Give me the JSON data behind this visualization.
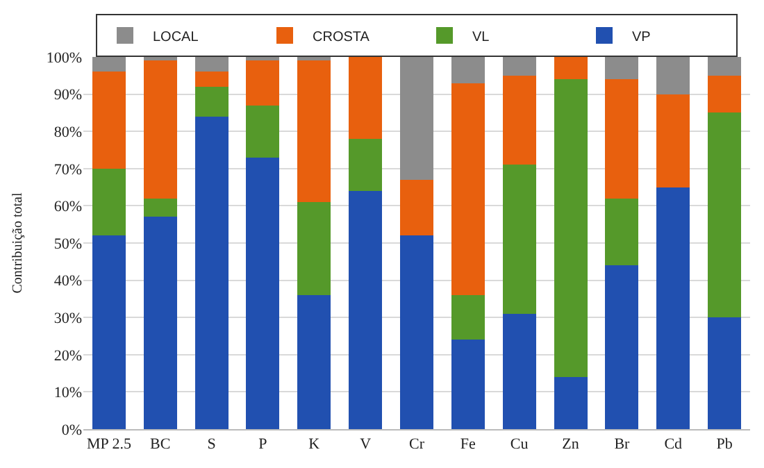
{
  "chart_data": {
    "type": "bar",
    "stacked": true,
    "ylabel": "Contribuição total",
    "categories": [
      "MP 2.5",
      "BC",
      "S",
      "P",
      "K",
      "V",
      "Cr",
      "Fe",
      "Cu",
      "Zn",
      "Br",
      "Cd",
      "Pb"
    ],
    "series": [
      {
        "name": "VP",
        "color": "#2150b0",
        "values": [
          52,
          57,
          84,
          73,
          36,
          64,
          52,
          24,
          31,
          14,
          44,
          65,
          30
        ]
      },
      {
        "name": "VL",
        "color": "#55992a",
        "values": [
          18,
          5,
          8,
          14,
          25,
          14,
          0,
          12,
          40,
          80,
          18,
          0,
          55
        ]
      },
      {
        "name": "CROSTA",
        "color": "#e8600e",
        "values": [
          26,
          37,
          4,
          12,
          38,
          22,
          15,
          57,
          24,
          6,
          32,
          25,
          10
        ]
      },
      {
        "name": "LOCAL",
        "color": "#8c8c8c",
        "values": [
          4,
          1,
          4,
          1,
          1,
          0,
          33,
          7,
          5,
          0,
          6,
          10,
          5
        ]
      }
    ],
    "ylim": [
      0,
      100
    ],
    "yticks": [
      {
        "value": 0,
        "label": "0%"
      },
      {
        "value": 10,
        "label": "10%"
      },
      {
        "value": 20,
        "label": "20%"
      },
      {
        "value": 30,
        "label": "30%"
      },
      {
        "value": 40,
        "label": "40%"
      },
      {
        "value": 50,
        "label": "50%"
      },
      {
        "value": 60,
        "label": "60%"
      },
      {
        "value": 70,
        "label": "70%"
      },
      {
        "value": 80,
        "label": "80%"
      },
      {
        "value": 90,
        "label": "90%"
      },
      {
        "value": 100,
        "label": "100%"
      }
    ],
    "grid": "y",
    "legend": "top"
  }
}
